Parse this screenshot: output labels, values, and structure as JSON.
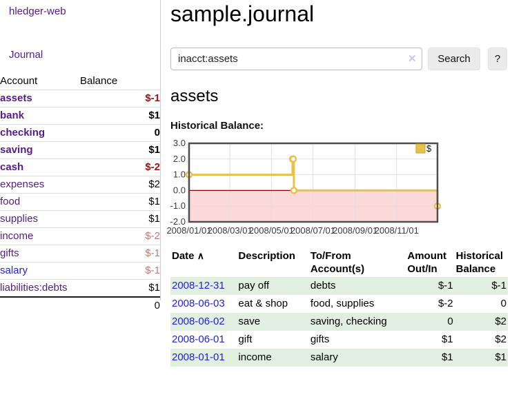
{
  "app": {
    "brand": "hledger-web",
    "nav_journal": "Journal"
  },
  "sidebar": {
    "header": {
      "account": "Account",
      "balance": "Balance"
    },
    "rows": [
      {
        "name": "assets",
        "balance": "$-1"
      },
      {
        "name": "bank",
        "balance": "$1"
      },
      {
        "name": "checking",
        "balance": "0"
      },
      {
        "name": "saving",
        "balance": "$1"
      },
      {
        "name": "cash",
        "balance": "$-2"
      },
      {
        "name": "expenses",
        "balance": "$2"
      },
      {
        "name": "food",
        "balance": "$1"
      },
      {
        "name": "supplies",
        "balance": "$1"
      },
      {
        "name": "income",
        "balance": "$-2"
      },
      {
        "name": "gifts",
        "balance": "$-1"
      },
      {
        "name": "salary",
        "balance": "$-1"
      },
      {
        "name": "liabilities:debts",
        "balance": "$1"
      }
    ],
    "total": "0"
  },
  "header": {
    "title": "sample.journal"
  },
  "search": {
    "value": "inacct:assets",
    "clear_icon": "✕",
    "button_label": "Search",
    "help_label": "?"
  },
  "account_page": {
    "title": "assets",
    "chart_label": "Historical Balance:"
  },
  "chart_data": {
    "type": "line",
    "step": true,
    "series": [
      {
        "name": "$",
        "color": "#e8c14a",
        "points": [
          [
            "2008-01-01",
            1
          ],
          [
            "2008-06-01",
            2
          ],
          [
            "2008-06-02",
            2
          ],
          [
            "2008-06-03",
            0
          ],
          [
            "2008-12-31",
            -1
          ]
        ]
      }
    ],
    "x_range": [
      "2008-01-01",
      "2008-12-31"
    ],
    "ylim": [
      -2,
      3
    ],
    "yticks": [
      "3.0",
      "2.0",
      "1.0",
      "0.0",
      "-1.0",
      "-2.0"
    ],
    "xticks": [
      "2008/01/01",
      "2008/03/01",
      "2008/05/01",
      "2008/07/01",
      "2008/09/01",
      "2008/11/01"
    ],
    "grid": true,
    "negative_fill": "#fbd9d9",
    "zero_line_color": "#8b0000",
    "legend": {
      "label": "$",
      "position": "top-right"
    }
  },
  "register": {
    "columns": {
      "date": "Date",
      "sort_icon": "∧",
      "description": "Description",
      "accounts": "To/From Account(s)",
      "amount": "Amount Out/In",
      "balance": "Historical Balance"
    },
    "rows": [
      {
        "date": "2008-12-31",
        "description": "pay off",
        "accounts": "debts",
        "amount": "$-1",
        "balance": "$-1"
      },
      {
        "date": "2008-06-03",
        "description": "eat & shop",
        "accounts": "food, supplies",
        "amount": "$-2",
        "balance": "0"
      },
      {
        "date": "2008-06-02",
        "description": "save",
        "accounts": "saving, checking",
        "amount": "0",
        "balance": "$2"
      },
      {
        "date": "2008-06-01",
        "description": "gift",
        "accounts": "gifts",
        "amount": "$1",
        "balance": "$2"
      },
      {
        "date": "2008-01-01",
        "description": "income",
        "accounts": "salary",
        "amount": "$1",
        "balance": "$1"
      }
    ]
  }
}
